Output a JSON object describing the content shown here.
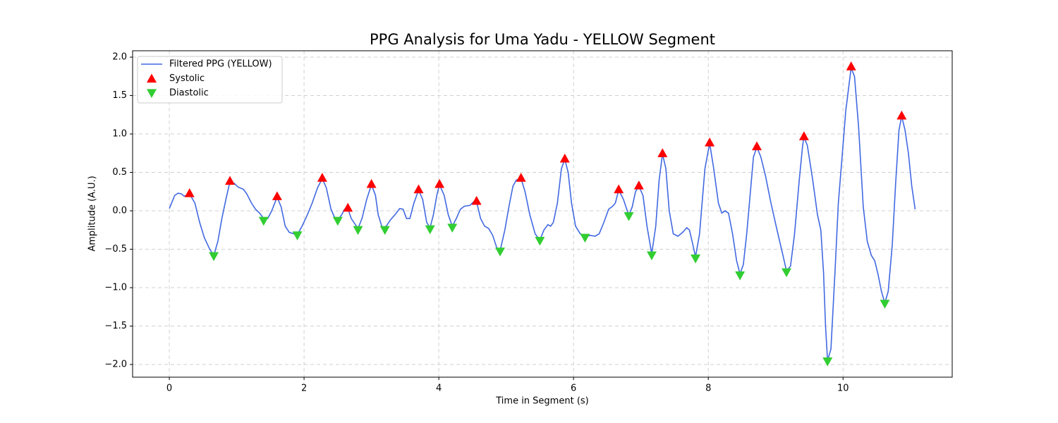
{
  "chart_data": {
    "type": "line",
    "title": "PPG Analysis for Uma Yadu - YELLOW Segment",
    "x_label": "Time in Segment (s)",
    "y_label": "Amplitude (A.U.)",
    "xlim": [
      -0.545,
      11.62
    ],
    "ylim": [
      -2.165,
      2.083
    ],
    "xticks": [
      0,
      2,
      4,
      6,
      8,
      10
    ],
    "yticks": [
      {
        "value": -2,
        "label": "−2.0"
      },
      {
        "value": -1.5,
        "label": "−1.5"
      },
      {
        "value": -1,
        "label": "−1.0"
      },
      {
        "value": -0.5,
        "label": "−0.5"
      },
      {
        "value": 0,
        "label": "0.0"
      },
      0.5,
      {
        "value": 1,
        "label": "1.0"
      },
      1.5,
      {
        "value": 2,
        "label": "2.0"
      }
    ],
    "grid": true,
    "legend": "upper left",
    "series": [
      {
        "name": "Filtered PPG (YELLOW)",
        "color": "#4169e1",
        "mode": "line",
        "x": [
          0.0,
          0.08,
          0.13,
          0.18,
          0.22,
          0.3,
          0.38,
          0.45,
          0.52,
          0.6,
          0.66,
          0.72,
          0.78,
          0.84,
          0.9,
          0.96,
          1.02,
          1.1,
          1.15,
          1.22,
          1.28,
          1.34,
          1.4,
          1.46,
          1.52,
          1.6,
          1.66,
          1.72,
          1.78,
          1.85,
          1.9,
          1.97,
          2.05,
          2.12,
          2.2,
          2.27,
          2.33,
          2.4,
          2.45,
          2.5,
          2.56,
          2.6,
          2.65,
          2.7,
          2.8,
          2.86,
          2.93,
          3.0,
          3.06,
          3.1,
          3.16,
          3.22,
          3.28,
          3.35,
          3.42,
          3.47,
          3.52,
          3.57,
          3.63,
          3.7,
          3.76,
          3.82,
          3.87,
          3.92,
          3.97,
          4.01,
          4.08,
          4.14,
          4.2,
          4.26,
          4.32,
          4.38,
          4.46,
          4.52,
          4.56,
          4.62,
          4.68,
          4.74,
          4.8,
          4.86,
          4.91,
          4.98,
          5.04,
          5.1,
          5.15,
          5.22,
          5.28,
          5.35,
          5.43,
          5.5,
          5.56,
          5.62,
          5.66,
          5.7,
          5.76,
          5.82,
          5.87,
          5.92,
          5.97,
          6.03,
          6.1,
          6.17,
          6.25,
          6.32,
          6.38,
          6.45,
          6.52,
          6.58,
          6.62,
          6.67,
          6.74,
          6.82,
          6.87,
          6.92,
          6.97,
          7.03,
          7.09,
          7.16,
          7.22,
          7.27,
          7.32,
          7.37,
          7.42,
          7.48,
          7.55,
          7.62,
          7.68,
          7.72,
          7.76,
          7.81,
          7.87,
          7.95,
          8.02,
          8.08,
          8.15,
          8.2,
          8.25,
          8.3,
          8.36,
          8.42,
          8.47,
          8.52,
          8.57,
          8.63,
          8.67,
          8.72,
          8.78,
          8.85,
          8.93,
          9.02,
          9.1,
          9.16,
          9.22,
          9.28,
          9.35,
          9.4,
          9.42,
          9.47,
          9.55,
          9.62,
          9.67,
          9.71,
          9.74,
          9.77,
          9.82,
          9.88,
          9.93,
          9.99,
          10.04,
          10.09,
          10.12,
          10.17,
          10.23,
          10.3,
          10.36,
          10.42,
          10.47,
          10.52,
          10.57,
          10.62,
          10.67,
          10.73,
          10.78,
          10.83,
          10.87,
          10.92,
          10.97,
          11.02,
          11.07
        ],
        "values": [
          0.03,
          0.2,
          0.23,
          0.22,
          0.19,
          0.22,
          0.1,
          -0.15,
          -0.35,
          -0.5,
          -0.58,
          -0.4,
          -0.1,
          0.15,
          0.38,
          0.36,
          0.31,
          0.28,
          0.22,
          0.1,
          0.02,
          -0.03,
          -0.1,
          -0.1,
          0.0,
          0.18,
          0.05,
          -0.2,
          -0.28,
          -0.3,
          -0.31,
          -0.2,
          -0.05,
          0.1,
          0.3,
          0.42,
          0.3,
          0.02,
          -0.08,
          -0.12,
          -0.05,
          0.02,
          0.03,
          -0.1,
          -0.23,
          -0.1,
          0.15,
          0.34,
          0.2,
          -0.05,
          -0.22,
          -0.2,
          -0.12,
          -0.05,
          0.03,
          0.02,
          -0.1,
          -0.1,
          0.1,
          0.27,
          0.15,
          -0.15,
          -0.22,
          -0.05,
          0.2,
          0.34,
          0.2,
          -0.05,
          -0.2,
          -0.1,
          0.02,
          0.06,
          0.07,
          0.12,
          0.12,
          -0.1,
          -0.2,
          -0.23,
          -0.32,
          -0.48,
          -0.52,
          -0.25,
          0.05,
          0.32,
          0.4,
          0.42,
          0.25,
          -0.05,
          -0.3,
          -0.38,
          -0.25,
          -0.18,
          -0.2,
          -0.15,
          0.1,
          0.55,
          0.67,
          0.5,
          0.1,
          -0.2,
          -0.3,
          -0.33,
          -0.32,
          -0.33,
          -0.3,
          -0.15,
          0.02,
          0.06,
          0.1,
          0.27,
          0.15,
          -0.06,
          0.05,
          0.25,
          0.32,
          0.2,
          -0.2,
          -0.56,
          -0.2,
          0.4,
          0.74,
          0.55,
          0.0,
          -0.3,
          -0.33,
          -0.28,
          -0.22,
          -0.25,
          -0.4,
          -0.6,
          -0.3,
          0.55,
          0.88,
          0.55,
          0.1,
          -0.03,
          0.0,
          -0.03,
          -0.3,
          -0.65,
          -0.82,
          -0.7,
          -0.3,
          0.3,
          0.7,
          0.83,
          0.7,
          0.45,
          0.1,
          -0.25,
          -0.55,
          -0.78,
          -0.72,
          -0.3,
          0.4,
          0.85,
          0.96,
          0.85,
          0.4,
          -0.05,
          -0.25,
          -0.8,
          -1.5,
          -1.95,
          -1.8,
          -0.8,
          0.1,
          0.75,
          1.3,
          1.65,
          1.86,
          1.75,
          1.1,
          0.05,
          -0.4,
          -0.58,
          -0.65,
          -0.83,
          -1.05,
          -1.2,
          -1.05,
          -0.45,
          0.35,
          1.05,
          1.23,
          1.05,
          0.75,
          0.32,
          0.02
        ]
      },
      {
        "name": "Systolic",
        "color": "#ff0000",
        "mode": "markers",
        "marker": "triangle-up",
        "x": [
          0.3,
          0.9,
          1.6,
          2.27,
          2.65,
          3.0,
          3.7,
          4.01,
          4.56,
          5.22,
          5.87,
          6.67,
          6.97,
          7.32,
          8.02,
          8.72,
          9.42,
          10.12,
          10.87
        ],
        "values": [
          0.23,
          0.39,
          0.19,
          0.43,
          0.04,
          0.35,
          0.28,
          0.35,
          0.13,
          0.43,
          0.68,
          0.28,
          0.33,
          0.75,
          0.89,
          0.84,
          0.97,
          1.88,
          1.24
        ]
      },
      {
        "name": "Diastolic",
        "color": "#32cd32",
        "mode": "markers",
        "marker": "triangle-down",
        "x": [
          0.66,
          1.4,
          1.9,
          2.5,
          2.8,
          3.2,
          3.87,
          4.2,
          4.91,
          5.5,
          6.17,
          6.82,
          7.16,
          7.81,
          8.47,
          9.16,
          9.77,
          10.62
        ],
        "values": [
          -0.59,
          -0.13,
          -0.32,
          -0.13,
          -0.25,
          -0.25,
          -0.24,
          -0.22,
          -0.53,
          -0.39,
          -0.35,
          -0.07,
          -0.58,
          -0.62,
          -0.84,
          -0.8,
          -1.96,
          -1.21
        ]
      }
    ]
  }
}
